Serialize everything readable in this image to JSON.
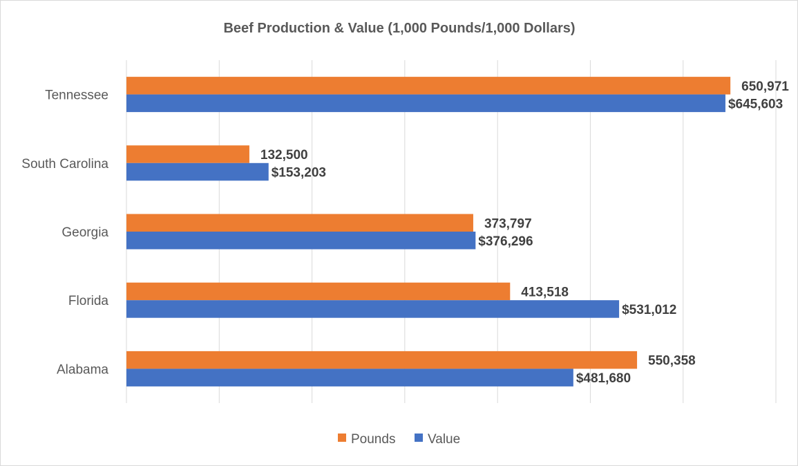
{
  "chart_data": {
    "type": "bar",
    "orientation": "horizontal",
    "title": "Beef Production & Value (1,000 Pounds/1,000 Dollars)",
    "categories": [
      "Tennessee",
      "South Carolina",
      "Georgia",
      "Florida",
      "Alabama"
    ],
    "series": [
      {
        "name": "Pounds",
        "color": "#ed7d31",
        "values": [
          650971,
          132500,
          373797,
          413518,
          550358
        ],
        "labels": [
          "650,971",
          "132,500",
          "373,797",
          "413,518",
          "550,358"
        ]
      },
      {
        "name": "Value",
        "color": "#4472c4",
        "values": [
          645603,
          153203,
          376296,
          531012,
          481680
        ],
        "labels": [
          "$645,603",
          "$153,203",
          "$376,296",
          "$531,012",
          "$481,680"
        ]
      }
    ],
    "xlim": [
      0,
      700000
    ],
    "x_grid_step": 100000,
    "grid": true,
    "legend": "bottom",
    "xlabel": "",
    "ylabel": ""
  }
}
